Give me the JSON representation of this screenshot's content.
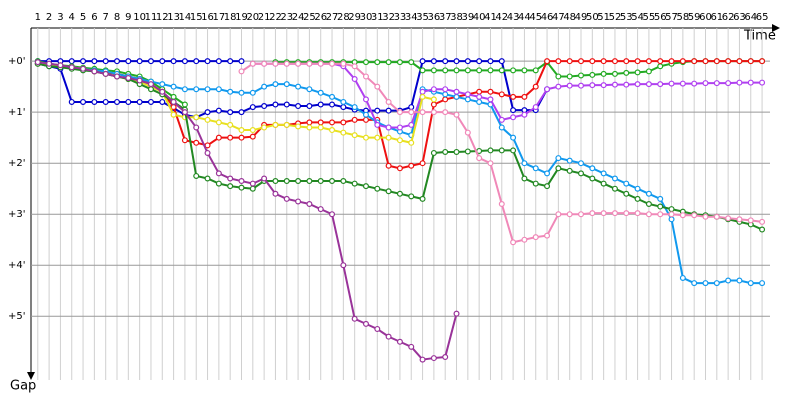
{
  "chart_data": {
    "type": "line",
    "xlabel": "Time",
    "ylabel": "Gap",
    "x": [
      1,
      2,
      3,
      4,
      5,
      6,
      7,
      8,
      9,
      10,
      11,
      12,
      13,
      14,
      15,
      16,
      17,
      18,
      19,
      20,
      21,
      22,
      23,
      24,
      25,
      26,
      27,
      28,
      29,
      30,
      31,
      32,
      33,
      34,
      35,
      36,
      37,
      38,
      39,
      40,
      41,
      42,
      43,
      44,
      45,
      46,
      47,
      48,
      49,
      50,
      51,
      52,
      53,
      54,
      55,
      56,
      57,
      58,
      59,
      60,
      61,
      62,
      63,
      64,
      65
    ],
    "xlim": [
      0.4,
      65.7
    ],
    "xticks": [
      1,
      2,
      3,
      4,
      5,
      6,
      7,
      8,
      9,
      10,
      11,
      12,
      13,
      14,
      15,
      16,
      17,
      18,
      19,
      20,
      21,
      22,
      23,
      24,
      25,
      26,
      27,
      28,
      29,
      30,
      31,
      32,
      33,
      34,
      35,
      36,
      37,
      38,
      39,
      40,
      41,
      42,
      43,
      44,
      45,
      46,
      47,
      48,
      49,
      50,
      51,
      52,
      53,
      54,
      55,
      56,
      57,
      58,
      59,
      60,
      61,
      62,
      63,
      64,
      65
    ],
    "ylim": [
      -0.65,
      6.25
    ],
    "y_inverted": true,
    "yticks": [
      {
        "value": 0,
        "label": "+0'"
      },
      {
        "value": 1,
        "label": "+1'"
      },
      {
        "value": 2,
        "label": "+2'"
      },
      {
        "value": 3,
        "label": "+3'"
      },
      {
        "value": 4,
        "label": "+4'"
      },
      {
        "value": 5,
        "label": "+5'"
      }
    ],
    "grid": true,
    "series": [
      {
        "color": "#0000cc",
        "values": [
          0,
          0,
          0,
          0,
          0,
          0,
          0,
          0,
          0,
          0,
          0,
          0,
          0,
          0,
          0,
          0,
          0,
          0,
          0,
          null,
          null,
          null,
          null,
          null,
          null,
          null,
          null,
          null,
          null,
          null,
          null,
          null,
          null,
          null,
          null,
          null,
          null,
          null,
          null,
          null,
          null,
          null,
          null,
          null,
          null,
          null,
          null,
          null,
          null,
          null,
          null,
          null,
          null,
          null,
          null,
          null,
          null,
          null,
          null,
          null,
          null,
          null,
          null,
          null,
          null
        ]
      },
      {
        "color": "#0000cc",
        "values": [
          0.05,
          0.1,
          0.15,
          0.8,
          0.8,
          0.8,
          0.8,
          0.8,
          0.8,
          0.8,
          0.8,
          0.8,
          0.92,
          1.05,
          1.1,
          1.0,
          0.97,
          1.0,
          1.0,
          0.9,
          0.88,
          0.85,
          0.85,
          0.88,
          0.88,
          0.85,
          0.85,
          0.9,
          0.95,
          0.97,
          0.97,
          0.97,
          0.97,
          0.9,
          0,
          0,
          0,
          0,
          0,
          0,
          0,
          0,
          0.96,
          0.96,
          0.96,
          0.55,
          null,
          null,
          null,
          null,
          null,
          null,
          null,
          null,
          null,
          null,
          null,
          null,
          null,
          null,
          null,
          null,
          null,
          null,
          null
        ]
      },
      {
        "color": "#22aa22",
        "values": [
          0,
          0.05,
          0.08,
          0.1,
          0.13,
          0.15,
          0.18,
          0.2,
          0.25,
          0.3,
          0.4,
          0.55,
          0.7,
          0.85,
          null,
          null,
          null,
          null,
          null,
          null,
          null,
          0.02,
          0.02,
          0.02,
          0.02,
          0.02,
          0.02,
          0.02,
          0.02,
          0.02,
          0.02,
          0.02,
          0.02,
          0.02,
          0.18,
          0.18,
          0.18,
          0.18,
          0.18,
          0.18,
          0.18,
          0.18,
          0.18,
          0.18,
          0.18,
          0.02,
          0.3,
          0.3,
          0.28,
          0.27,
          0.25,
          0.25,
          0.23,
          0.22,
          0.2,
          0.1,
          0.05,
          0.02,
          0,
          0,
          0,
          0,
          0,
          0,
          0
        ]
      },
      {
        "color": "#ee1111",
        "values": [
          0.05,
          0.08,
          0.1,
          0.13,
          0.16,
          0.2,
          0.22,
          0.25,
          0.3,
          0.35,
          0.45,
          0.6,
          0.9,
          1.55,
          1.6,
          1.65,
          1.5,
          1.5,
          1.5,
          1.48,
          1.25,
          1.25,
          1.25,
          1.22,
          1.2,
          1.2,
          1.2,
          1.2,
          1.15,
          1.15,
          1.15,
          2.05,
          2.1,
          2.05,
          2.0,
          0.85,
          0.75,
          0.7,
          0.65,
          0.6,
          0.6,
          0.65,
          0.7,
          0.7,
          0.5,
          0,
          0,
          0,
          0,
          0,
          0,
          0,
          0,
          0,
          0,
          0,
          0,
          0,
          0,
          0,
          0,
          0,
          0,
          0,
          0
        ]
      },
      {
        "color": "#1199ee",
        "values": [
          0.05,
          0.08,
          0.1,
          0.12,
          0.15,
          0.18,
          0.2,
          0.25,
          0.3,
          0.35,
          0.4,
          0.45,
          0.5,
          0.55,
          0.55,
          0.55,
          0.55,
          0.6,
          0.62,
          0.62,
          0.5,
          0.45,
          0.45,
          0.5,
          0.55,
          0.62,
          0.7,
          0.8,
          0.9,
          1.05,
          1.2,
          1.3,
          1.38,
          1.45,
          0.55,
          0.6,
          0.65,
          0.7,
          0.75,
          0.8,
          0.85,
          1.3,
          1.5,
          2.0,
          2.1,
          2.2,
          1.9,
          1.95,
          2.0,
          2.1,
          2.2,
          2.3,
          2.4,
          2.5,
          2.6,
          2.7,
          3.1,
          4.25,
          4.35,
          4.35,
          4.35,
          4.3,
          4.3,
          4.35,
          4.35
        ]
      },
      {
        "color": "#b040f0",
        "values": [
          null,
          null,
          null,
          null,
          null,
          null,
          null,
          null,
          null,
          null,
          null,
          null,
          null,
          null,
          null,
          null,
          null,
          null,
          null,
          0.05,
          0.05,
          0.05,
          0.05,
          0.05,
          0.05,
          0.05,
          0.05,
          0.1,
          0.35,
          0.75,
          1.25,
          1.3,
          1.3,
          1.25,
          0.6,
          0.55,
          0.55,
          0.6,
          0.65,
          0.7,
          0.75,
          1.15,
          1.1,
          1.05,
          0.9,
          0.55,
          0.5,
          0.48,
          0.48,
          0.47,
          0.47,
          0.46,
          0.46,
          0.45,
          0.45,
          0.45,
          0.44,
          0.44,
          0.44,
          0.43,
          0.43,
          0.43,
          0.42,
          0.42,
          0.42
        ]
      },
      {
        "color": "#e8e020",
        "values": [
          0.05,
          0.08,
          0.1,
          0.12,
          0.15,
          0.2,
          0.25,
          0.3,
          0.35,
          0.4,
          0.5,
          0.6,
          1.05,
          1.1,
          1.1,
          1.15,
          1.2,
          1.25,
          1.35,
          1.35,
          1.3,
          1.25,
          1.25,
          1.28,
          1.3,
          1.3,
          1.35,
          1.4,
          1.45,
          1.5,
          1.5,
          1.5,
          1.55,
          1.6,
          0.7,
          0.75,
          null,
          null,
          null,
          null,
          null,
          null,
          null,
          null,
          null,
          null,
          null,
          null,
          null,
          null,
          null,
          null,
          null,
          null,
          null,
          null,
          null,
          null,
          null,
          null,
          null,
          null,
          null,
          null,
          null
        ]
      },
      {
        "color": "#228822",
        "values": [
          0.05,
          0.1,
          0.12,
          0.15,
          0.18,
          0.2,
          0.25,
          0.3,
          0.35,
          0.45,
          0.55,
          0.65,
          0.8,
          0.95,
          2.25,
          2.3,
          2.4,
          2.45,
          2.48,
          2.5,
          2.35,
          2.35,
          2.35,
          2.35,
          2.35,
          2.35,
          2.35,
          2.35,
          2.4,
          2.45,
          2.5,
          2.55,
          2.6,
          2.65,
          2.7,
          1.8,
          1.78,
          1.78,
          1.77,
          1.76,
          1.75,
          1.75,
          1.75,
          2.3,
          2.4,
          2.45,
          2.1,
          2.15,
          2.2,
          2.3,
          2.4,
          2.5,
          2.6,
          2.7,
          2.8,
          2.85,
          2.9,
          2.95,
          3.0,
          3.02,
          3.05,
          3.1,
          3.15,
          3.2,
          3.3
        ]
      },
      {
        "color": "#f088b8",
        "values": [
          null,
          null,
          null,
          null,
          null,
          null,
          null,
          null,
          null,
          null,
          null,
          null,
          null,
          null,
          null,
          null,
          null,
          null,
          0.2,
          0.05,
          0.05,
          0.05,
          0.05,
          0.05,
          0.05,
          0.05,
          0.05,
          0.05,
          0.1,
          0.3,
          0.5,
          0.8,
          1.0,
          1.0,
          1.0,
          1.0,
          1.0,
          1.05,
          1.4,
          1.9,
          2.0,
          2.8,
          3.55,
          3.5,
          3.45,
          3.42,
          3.0,
          3.0,
          3.0,
          2.98,
          2.98,
          2.98,
          2.98,
          2.98,
          3.0,
          3.0,
          3.0,
          3.02,
          3.02,
          3.05,
          3.05,
          3.08,
          3.1,
          3.12,
          3.15
        ]
      },
      {
        "color": "#993399",
        "values": [
          0.02,
          0.05,
          0.08,
          0.12,
          0.15,
          0.2,
          0.25,
          0.3,
          0.33,
          0.38,
          0.45,
          0.6,
          0.8,
          1.0,
          1.3,
          1.8,
          2.2,
          2.3,
          2.35,
          2.4,
          2.3,
          2.6,
          2.7,
          2.75,
          2.8,
          2.9,
          3.0,
          4.0,
          5.05,
          5.15,
          5.25,
          5.4,
          5.5,
          5.6,
          5.85,
          5.82,
          5.8,
          4.95,
          null,
          null,
          null,
          null,
          null,
          null,
          null,
          null,
          null,
          null,
          null,
          null,
          null,
          null,
          null,
          null,
          null,
          null,
          null,
          null,
          null,
          null,
          null,
          null,
          null,
          null,
          null
        ]
      }
    ]
  }
}
